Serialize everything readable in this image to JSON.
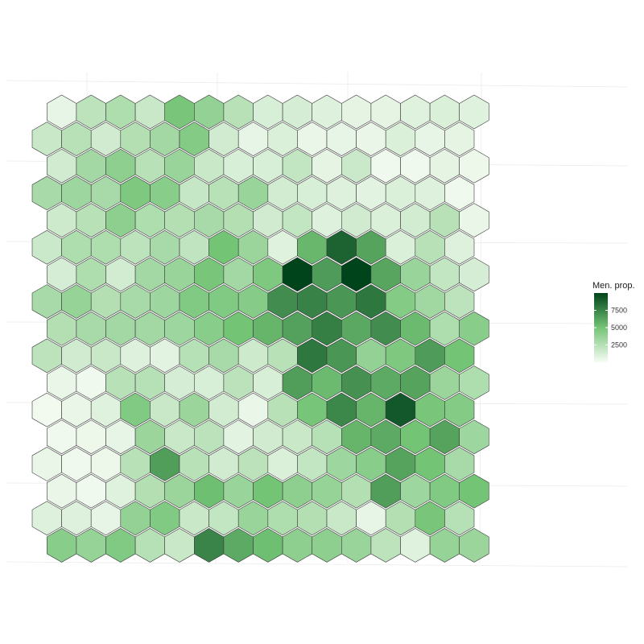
{
  "chart_data": {
    "type": "heatmap",
    "subtype": "hexagonal grid",
    "title": "",
    "xlabel": "",
    "ylabel": "",
    "grid": true,
    "legend": {
      "title": "Men. prop.",
      "placement": "right",
      "ticks": [
        2500,
        5000,
        7500
      ],
      "tick_labels": [
        "2500",
        "5000",
        "7500"
      ],
      "range": [
        0,
        10000
      ]
    },
    "color_scale": {
      "low": "#f7fcf5",
      "mid": "#74c476",
      "high": "#00441b"
    },
    "columns": 15,
    "rows": 17,
    "values": [
      [
        600,
        2200,
        2800,
        1800,
        4800,
        3800,
        2400,
        1200,
        1300,
        1000,
        700,
        700,
        900,
        1100,
        900
      ],
      [
        1800,
        2400,
        1500,
        2600,
        3200,
        4400,
        1500,
        600,
        1100,
        500,
        600,
        500,
        1100,
        600,
        700
      ],
      [
        1500,
        3200,
        4000,
        2400,
        3600,
        1800,
        1200,
        1200,
        2000,
        700,
        1700,
        300,
        300,
        700,
        400
      ],
      [
        3000,
        3400,
        3000,
        4600,
        4200,
        1900,
        2400,
        3600,
        1400,
        1200,
        1000,
        800,
        1100,
        1000,
        300
      ],
      [
        1600,
        2400,
        4000,
        2800,
        2600,
        3000,
        2600,
        1500,
        2000,
        1000,
        1500,
        1100,
        1400,
        2400,
        500
      ],
      [
        1700,
        2800,
        2800,
        2200,
        3000,
        2100,
        5000,
        3500,
        900,
        5500,
        8800,
        6300,
        1100,
        2400,
        1000
      ],
      [
        1300,
        2800,
        1400,
        3200,
        3600,
        4800,
        3200,
        4600,
        10000,
        6600,
        10000,
        6200,
        3600,
        2000,
        1300
      ],
      [
        3000,
        3700,
        2600,
        3000,
        3400,
        4500,
        4500,
        4300,
        7200,
        7600,
        6800,
        8000,
        4400,
        3300,
        2200
      ],
      [
        2600,
        3000,
        3200,
        3200,
        3400,
        4200,
        5000,
        5600,
        6400,
        7700,
        6100,
        7200,
        5400,
        2800,
        4200
      ],
      [
        2200,
        1500,
        1800,
        1000,
        800,
        2500,
        3000,
        1600,
        2400,
        8000,
        6800,
        3800,
        4600,
        6600,
        5000
      ],
      [
        500,
        300,
        2400,
        2500,
        1300,
        1200,
        2300,
        1200,
        6500,
        5400,
        7000,
        6000,
        6300,
        3500,
        2800
      ],
      [
        200,
        500,
        900,
        4500,
        1800,
        3500,
        1400,
        500,
        2400,
        4900,
        7400,
        5600,
        9200,
        4800,
        4400
      ],
      [
        300,
        400,
        600,
        3500,
        1800,
        2300,
        800,
        1500,
        1800,
        2500,
        5600,
        6000,
        5000,
        6300,
        3400
      ],
      [
        500,
        300,
        400,
        2400,
        6500,
        2400,
        1500,
        2300,
        1100,
        2000,
        3400,
        4200,
        6300,
        5000,
        3000
      ],
      [
        500,
        300,
        900,
        2600,
        3500,
        5200,
        3600,
        5000,
        4000,
        3700,
        2600,
        6500,
        3400,
        4500,
        5000
      ],
      [
        1000,
        1000,
        600,
        3800,
        4500,
        1800,
        2000,
        3600,
        2800,
        2600,
        1800,
        600,
        2600,
        4800,
        2500
      ],
      [
        4200,
        3700,
        4500,
        2500,
        1800,
        7500,
        6000,
        5200,
        4000,
        4000,
        3600,
        2200,
        900,
        3700,
        3500
      ]
    ]
  }
}
